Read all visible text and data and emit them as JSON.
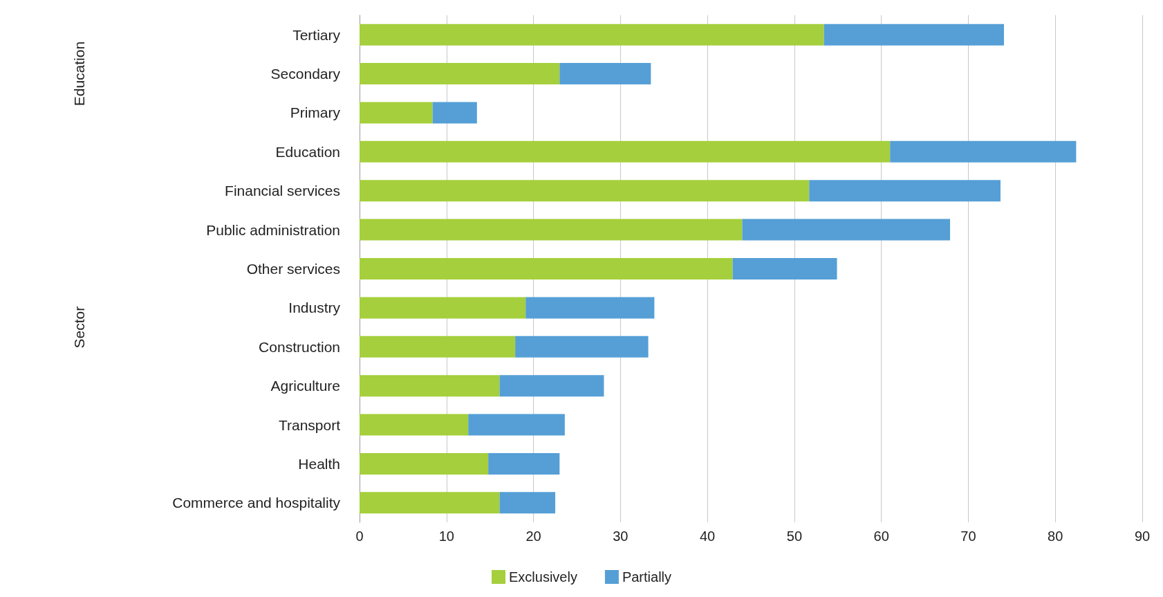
{
  "chart_data": {
    "type": "bar",
    "orientation": "horizontal",
    "stacked": true,
    "categories": [
      "Tertiary",
      "Secondary",
      "Primary",
      "Education",
      "Financial services",
      "Public administration",
      "Other services",
      "Industry",
      "Construction",
      "Agriculture",
      "Transport",
      "Health",
      "Commerce and hospitality"
    ],
    "series": [
      {
        "name": "Exclusively",
        "color": "#a5cf3c",
        "values": [
          53.4,
          23.0,
          8.4,
          61.0,
          51.7,
          44.0,
          42.9,
          19.1,
          17.9,
          16.1,
          12.5,
          14.8,
          16.1
        ]
      },
      {
        "name": "Partially",
        "color": "#559fd6",
        "values": [
          20.7,
          10.5,
          5.1,
          21.4,
          22.0,
          23.9,
          12.0,
          14.8,
          15.3,
          12.0,
          11.1,
          8.2,
          6.4
        ]
      }
    ],
    "xlim": [
      0,
      90
    ],
    "xticks": [
      0,
      10,
      20,
      30,
      40,
      50,
      60,
      70,
      80,
      90
    ],
    "grid": "x",
    "legend": "bottom",
    "annotations": [
      "Education",
      "Sector"
    ]
  }
}
